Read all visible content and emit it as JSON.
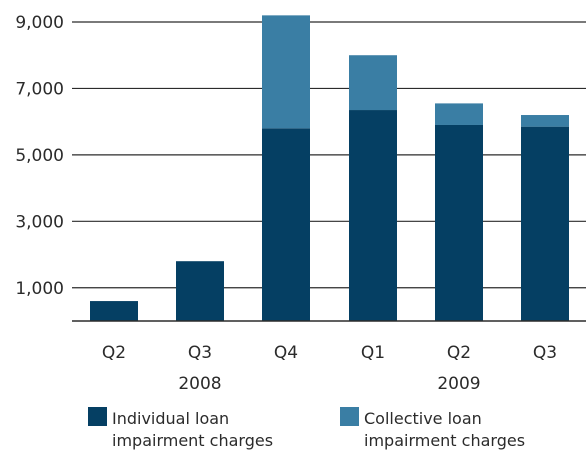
{
  "chart_data": {
    "type": "bar",
    "stacked": true,
    "categories": [
      "Q2",
      "Q3",
      "Q4",
      "Q1",
      "Q2",
      "Q3"
    ],
    "year_groups": [
      {
        "label": "2008",
        "from": 0,
        "to": 2
      },
      {
        "label": "2009",
        "from": 3,
        "to": 5
      }
    ],
    "series": [
      {
        "name": "Individual loan impairment charges",
        "legend_lines": [
          "Individual loan",
          "impairment charges"
        ],
        "color": "#053f63",
        "values": [
          600,
          1800,
          5800,
          6350,
          5900,
          5850
        ]
      },
      {
        "name": "Collective loan impairment charges",
        "legend_lines": [
          "Collective loan",
          "impairment charges"
        ],
        "color": "#3a7ea4",
        "values": [
          0,
          0,
          3400,
          1650,
          650,
          350
        ]
      }
    ],
    "ylim": [
      0,
      9000
    ],
    "yticks": [
      1000,
      3000,
      5000,
      7000,
      9000
    ],
    "ytick_labels": [
      "1,000",
      "3,000",
      "5,000",
      "7,000",
      "9,000"
    ],
    "grid": true,
    "legend_position": "bottom"
  }
}
